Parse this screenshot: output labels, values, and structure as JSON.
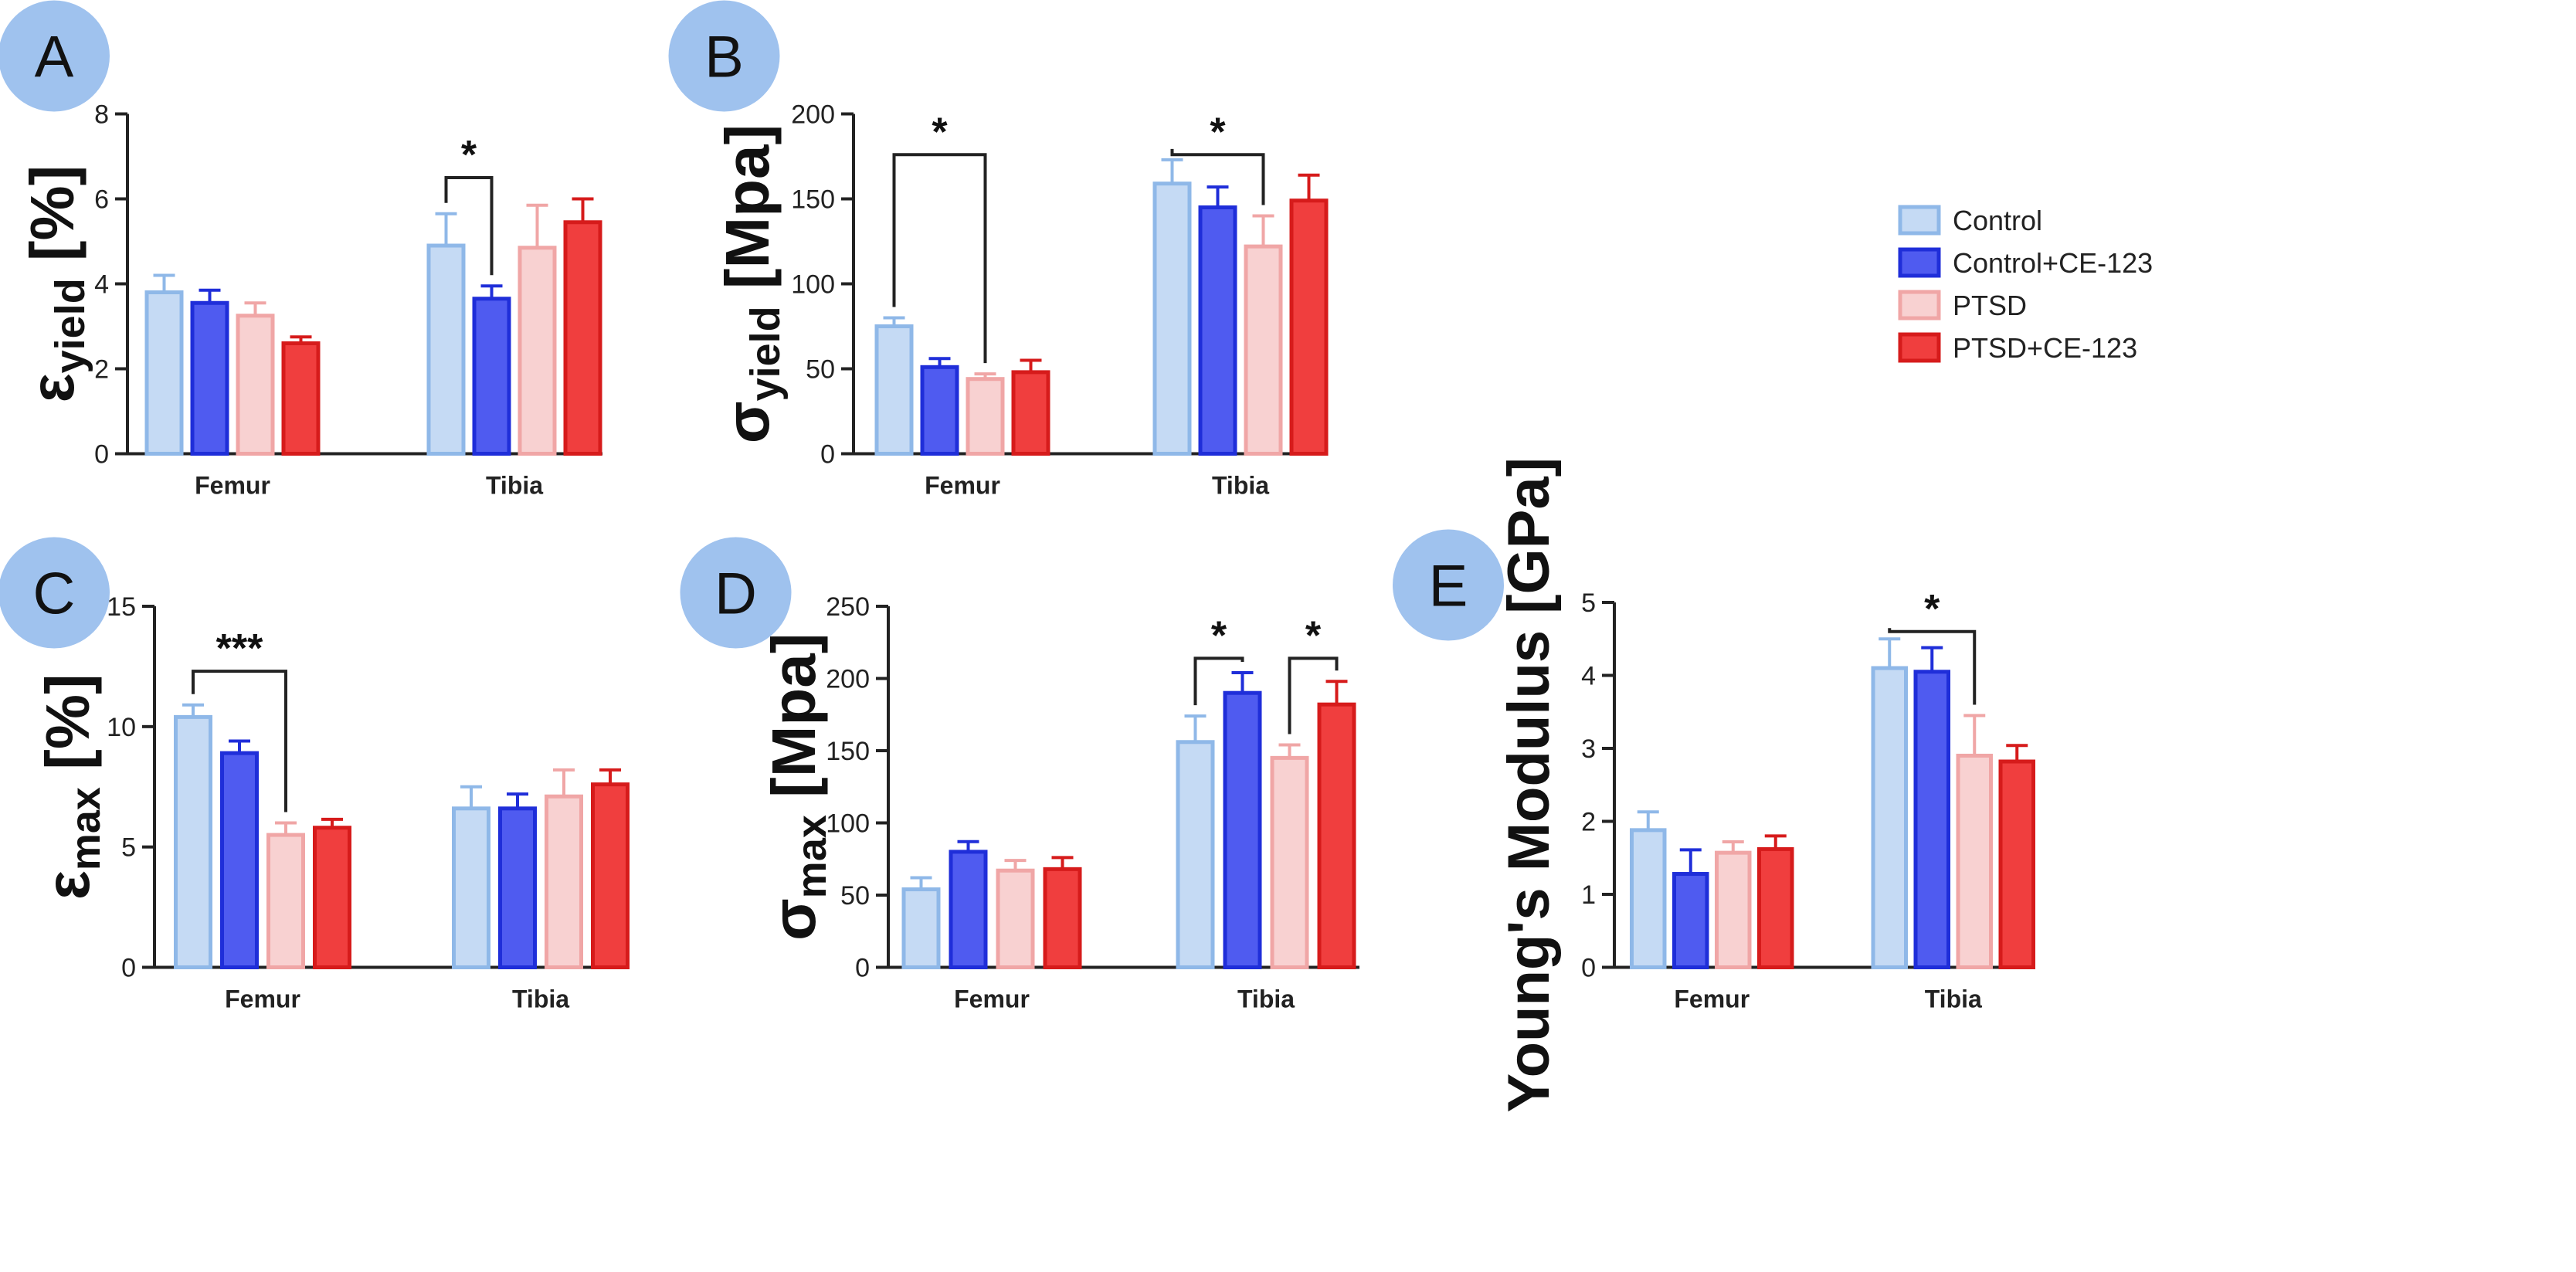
{
  "legend": {
    "placement": "right",
    "entries": [
      {
        "name": "Control",
        "fill": "#c5daf4",
        "stroke": "#8fb8e8"
      },
      {
        "name": "Control+CE-123",
        "fill": "#4f5bf0",
        "stroke": "#1f2ed9"
      },
      {
        "name": "PTSD",
        "fill": "#f8d1d1",
        "stroke": "#f0a6a6"
      },
      {
        "name": "PTSD+CE-123",
        "fill": "#f03e3e",
        "stroke": "#d61b1b"
      }
    ]
  },
  "chart_data": [
    {
      "panel": "A",
      "type": "bar",
      "ylabel_base": "ε",
      "ylabel_sub": "yield",
      "ylabel_unit": " [%]",
      "categories": [
        "Femur",
        "Tibia"
      ],
      "series": [
        {
          "name": "Control",
          "values": [
            3.8,
            4.9
          ],
          "errors": [
            0.4,
            0.75
          ]
        },
        {
          "name": "Control+CE-123",
          "values": [
            3.55,
            3.65
          ],
          "errors": [
            0.3,
            0.3
          ]
        },
        {
          "name": "PTSD",
          "values": [
            3.25,
            4.85
          ],
          "errors": [
            0.3,
            1.0
          ]
        },
        {
          "name": "PTSD+CE-123",
          "values": [
            2.6,
            5.45
          ],
          "errors": [
            0.15,
            0.55
          ]
        }
      ],
      "ylim": [
        0,
        8
      ],
      "yticks": [
        "0",
        "2",
        "4",
        "6",
        "8"
      ],
      "tick_values": [
        0,
        2,
        4,
        6,
        8
      ],
      "significance": [
        {
          "label": "*",
          "cat": 1,
          "from": 0,
          "to": 1,
          "y": 6.5
        }
      ]
    },
    {
      "panel": "B",
      "type": "bar",
      "ylabel_base": "σ",
      "ylabel_sub": "yield",
      "ylabel_unit": " [Mpa]",
      "categories": [
        "Femur",
        "Tibia"
      ],
      "series": [
        {
          "name": "Control",
          "values": [
            75,
            159
          ],
          "errors": [
            5,
            14
          ]
        },
        {
          "name": "Control+CE-123",
          "values": [
            51,
            145
          ],
          "errors": [
            5,
            12
          ]
        },
        {
          "name": "PTSD",
          "values": [
            44,
            122
          ],
          "errors": [
            3,
            18
          ]
        },
        {
          "name": "PTSD+CE-123",
          "values": [
            48,
            149
          ],
          "errors": [
            7,
            15
          ]
        }
      ],
      "ylim": [
        0,
        200
      ],
      "yticks": [
        "0",
        "50",
        "100",
        "150",
        "200"
      ],
      "tick_values": [
        0,
        50,
        100,
        150,
        200
      ],
      "significance": [
        {
          "label": "*",
          "cat": 0,
          "from": 0,
          "to": 2,
          "y": 176
        },
        {
          "label": "*",
          "cat": 1,
          "from": 0,
          "to": 2,
          "y": 176
        }
      ]
    },
    {
      "panel": "C",
      "type": "bar",
      "ylabel_base": "ε",
      "ylabel_sub": "max",
      "ylabel_unit": " [%]",
      "categories": [
        "Femur",
        "Tibia"
      ],
      "series": [
        {
          "name": "Control",
          "values": [
            10.4,
            6.6
          ],
          "errors": [
            0.5,
            0.9
          ]
        },
        {
          "name": "Control+CE-123",
          "values": [
            8.9,
            6.6
          ],
          "errors": [
            0.5,
            0.6
          ]
        },
        {
          "name": "PTSD",
          "values": [
            5.5,
            7.1
          ],
          "errors": [
            0.5,
            1.1
          ]
        },
        {
          "name": "PTSD+CE-123",
          "values": [
            5.8,
            7.6
          ],
          "errors": [
            0.35,
            0.6
          ]
        }
      ],
      "ylim": [
        0,
        15
      ],
      "yticks": [
        "0",
        "5",
        "10",
        "15"
      ],
      "tick_values": [
        0,
        5,
        10,
        15
      ],
      "significance": [
        {
          "label": "***",
          "cat": 0,
          "from": 0,
          "to": 2,
          "y": 12.3
        }
      ]
    },
    {
      "panel": "D",
      "type": "bar",
      "ylabel_base": "σ",
      "ylabel_sub": "max",
      "ylabel_unit": " [Mpa]",
      "categories": [
        "Femur",
        "Tibia"
      ],
      "series": [
        {
          "name": "Control",
          "values": [
            54,
            156
          ],
          "errors": [
            8,
            18
          ]
        },
        {
          "name": "Control+CE-123",
          "values": [
            80,
            190
          ],
          "errors": [
            7,
            14
          ]
        },
        {
          "name": "PTSD",
          "values": [
            67,
            145
          ],
          "errors": [
            7,
            9
          ]
        },
        {
          "name": "PTSD+CE-123",
          "values": [
            68,
            182
          ],
          "errors": [
            8,
            16
          ]
        }
      ],
      "ylim": [
        0,
        250
      ],
      "yticks": [
        "0",
        "50",
        "100",
        "150",
        "200",
        "250"
      ],
      "tick_values": [
        0,
        50,
        100,
        150,
        200,
        250
      ],
      "significance": [
        {
          "label": "*",
          "cat": 1,
          "from": 0,
          "to": 1,
          "y": 214
        },
        {
          "label": "*",
          "cat": 1,
          "from": 2,
          "to": 3,
          "y": 214
        }
      ]
    },
    {
      "panel": "E",
      "type": "bar",
      "ylabel_base": "Young's Modulus [GPa]",
      "ylabel_sub": "",
      "ylabel_unit": "",
      "categories": [
        "Femur",
        "Tibia"
      ],
      "series": [
        {
          "name": "Control",
          "values": [
            1.88,
            4.1
          ],
          "errors": [
            0.25,
            0.4
          ]
        },
        {
          "name": "Control+CE-123",
          "values": [
            1.28,
            4.05
          ],
          "errors": [
            0.33,
            0.33
          ]
        },
        {
          "name": "PTSD",
          "values": [
            1.57,
            2.9
          ],
          "errors": [
            0.15,
            0.55
          ]
        },
        {
          "name": "PTSD+CE-123",
          "values": [
            1.62,
            2.82
          ],
          "errors": [
            0.18,
            0.22
          ]
        }
      ],
      "ylim": [
        0,
        5
      ],
      "yticks": [
        "0",
        "1",
        "2",
        "3",
        "4",
        "5"
      ],
      "tick_values": [
        0,
        1,
        2,
        3,
        4,
        5
      ],
      "significance": [
        {
          "label": "*",
          "cat": 1,
          "from": 0,
          "to": 2,
          "y": 4.6
        }
      ]
    }
  ]
}
